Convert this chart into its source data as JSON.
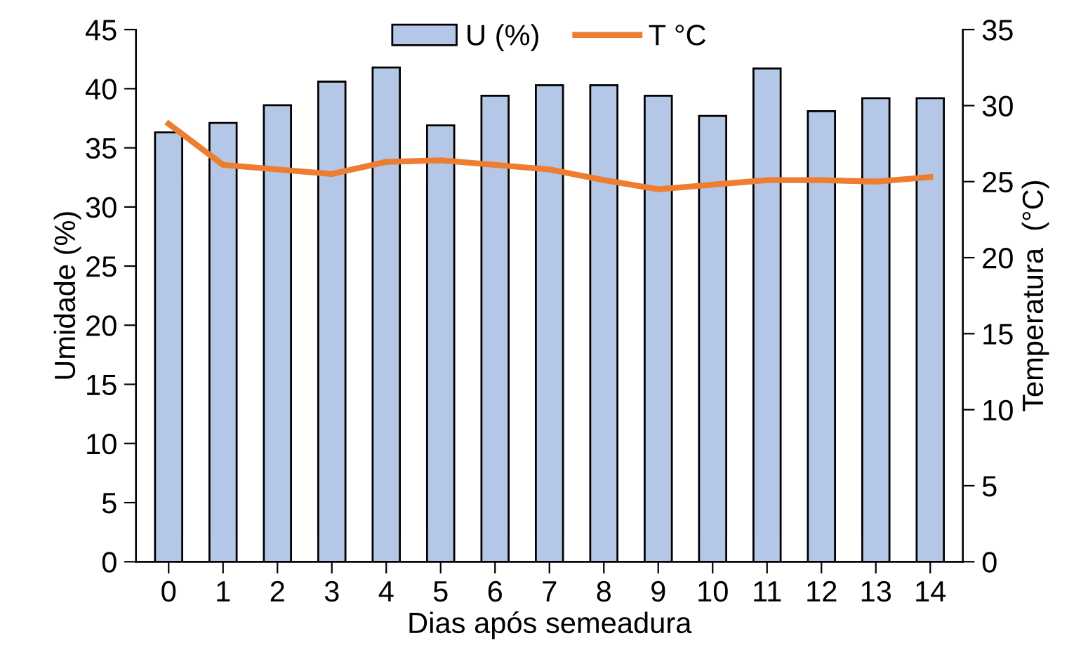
{
  "chart_data": {
    "type": "bar",
    "xlabel": "Dias após semeadura",
    "ylabel": "Umidade (%)",
    "y2label": "Temperatura  (°C)",
    "categories": [
      "0",
      "1",
      "2",
      "3",
      "4",
      "5",
      "6",
      "7",
      "8",
      "9",
      "10",
      "11",
      "12",
      "13",
      "14"
    ],
    "series": [
      {
        "name": "U (%)",
        "color": "#b4c7e7",
        "values": [
          36.3,
          37.1,
          38.6,
          40.6,
          41.8,
          36.9,
          39.4,
          40.3,
          40.3,
          39.4,
          37.7,
          41.7,
          38.1,
          39.2,
          39.2
        ]
      },
      {
        "name": "T °C",
        "type": "line",
        "axis": "y2",
        "color": "#ed7d31",
        "values": [
          28.8,
          26.1,
          25.8,
          25.5,
          26.3,
          26.4,
          26.1,
          25.8,
          25.1,
          24.5,
          24.8,
          25.1,
          25.1,
          25.0,
          25.3
        ]
      }
    ],
    "ylim": [
      0,
      45
    ],
    "yticks": [
      0,
      5,
      10,
      15,
      20,
      25,
      30,
      35,
      40,
      45
    ],
    "y2lim": [
      0,
      35
    ],
    "y2ticks": [
      0,
      5,
      10,
      15,
      20,
      25,
      30,
      35
    ],
    "legend": "top",
    "grid": false
  }
}
